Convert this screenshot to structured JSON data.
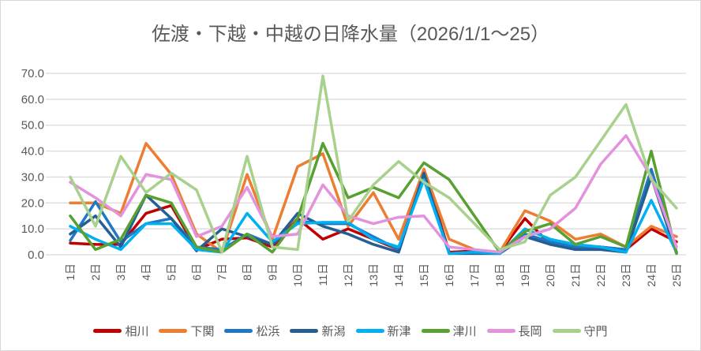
{
  "chart_data": {
    "type": "line",
    "title": "佐渡・下越・中越の日降水量（2026/1/1～25）",
    "xlabel": "",
    "ylabel": "",
    "ylim": [
      0,
      70
    ],
    "ytick_step": 10,
    "ytick_labels": [
      "0.0",
      "10.0",
      "20.0",
      "30.0",
      "40.0",
      "50.0",
      "60.0",
      "70.0"
    ],
    "grid": true,
    "legend_position": "bottom",
    "text_color": "#595959",
    "grid_color": "#d9d9d9",
    "categories": [
      "1日",
      "2日",
      "3日",
      "4日",
      "5日",
      "6日",
      "7日",
      "8日",
      "9日",
      "10日",
      "11日",
      "12日",
      "13日",
      "14日",
      "15日",
      "16日",
      "17日",
      "18日",
      "19日",
      "20日",
      "21日",
      "22日",
      "23日",
      "24日",
      "25日"
    ],
    "series": [
      {
        "name": "相川",
        "color": "#C00000",
        "values": [
          4.5,
          4,
          4,
          16,
          19,
          2,
          6,
          6.5,
          3,
          14,
          6,
          10,
          6,
          2,
          33,
          1,
          1.5,
          1,
          14,
          4,
          3,
          3,
          2,
          10,
          5
        ]
      },
      {
        "name": "下関",
        "color": "#ED7D31",
        "values": [
          20,
          20,
          16,
          43,
          31,
          8,
          1,
          31,
          6,
          34,
          39,
          11,
          24,
          6,
          33,
          6,
          2,
          1,
          17,
          13,
          6,
          8,
          3,
          11,
          7
        ]
      },
      {
        "name": "松浜",
        "color": "#2077C4",
        "values": [
          5.5,
          20.5,
          5,
          12,
          14,
          3,
          2,
          8,
          4,
          13,
          12,
          12,
          7,
          2,
          30.5,
          0.5,
          1,
          0.5,
          8,
          5,
          3,
          3,
          2,
          33,
          1
        ]
      },
      {
        "name": "新潟",
        "color": "#255E91",
        "values": [
          8,
          15,
          3,
          23,
          14,
          1.5,
          10,
          7,
          4,
          16,
          11,
          8,
          4,
          1,
          31.5,
          0.5,
          0.5,
          0.5,
          7,
          4,
          2,
          2,
          1,
          30,
          0.5
        ]
      },
      {
        "name": "新津",
        "color": "#00B0F0",
        "values": [
          11,
          6,
          2,
          12,
          12,
          2,
          1,
          16,
          5,
          12,
          12.5,
          12.5,
          6,
          3,
          29,
          0.5,
          1,
          0.5,
          10,
          6,
          4,
          3,
          1,
          21,
          1
        ]
      },
      {
        "name": "津川",
        "color": "#58A032",
        "values": [
          15,
          2,
          6,
          23,
          20,
          3,
          1,
          8,
          1,
          14,
          43,
          22,
          26,
          22,
          35.5,
          29,
          15,
          1,
          9,
          12,
          4,
          7,
          3,
          40,
          0.5
        ]
      },
      {
        "name": "長岡",
        "color": "#E393DE",
        "values": [
          28,
          22,
          15,
          31,
          29,
          7,
          11,
          26,
          7,
          8,
          27,
          15,
          12,
          14.5,
          15,
          3,
          2,
          1,
          7,
          10,
          18,
          35,
          46,
          30,
          3
        ]
      },
      {
        "name": "守門",
        "color": "#A9D18E",
        "values": [
          30,
          11,
          38,
          24,
          31.5,
          25,
          1,
          38,
          3,
          2,
          69,
          13,
          27,
          36,
          28,
          22,
          12,
          2,
          5,
          23,
          30,
          44,
          58,
          29,
          18
        ]
      }
    ]
  }
}
